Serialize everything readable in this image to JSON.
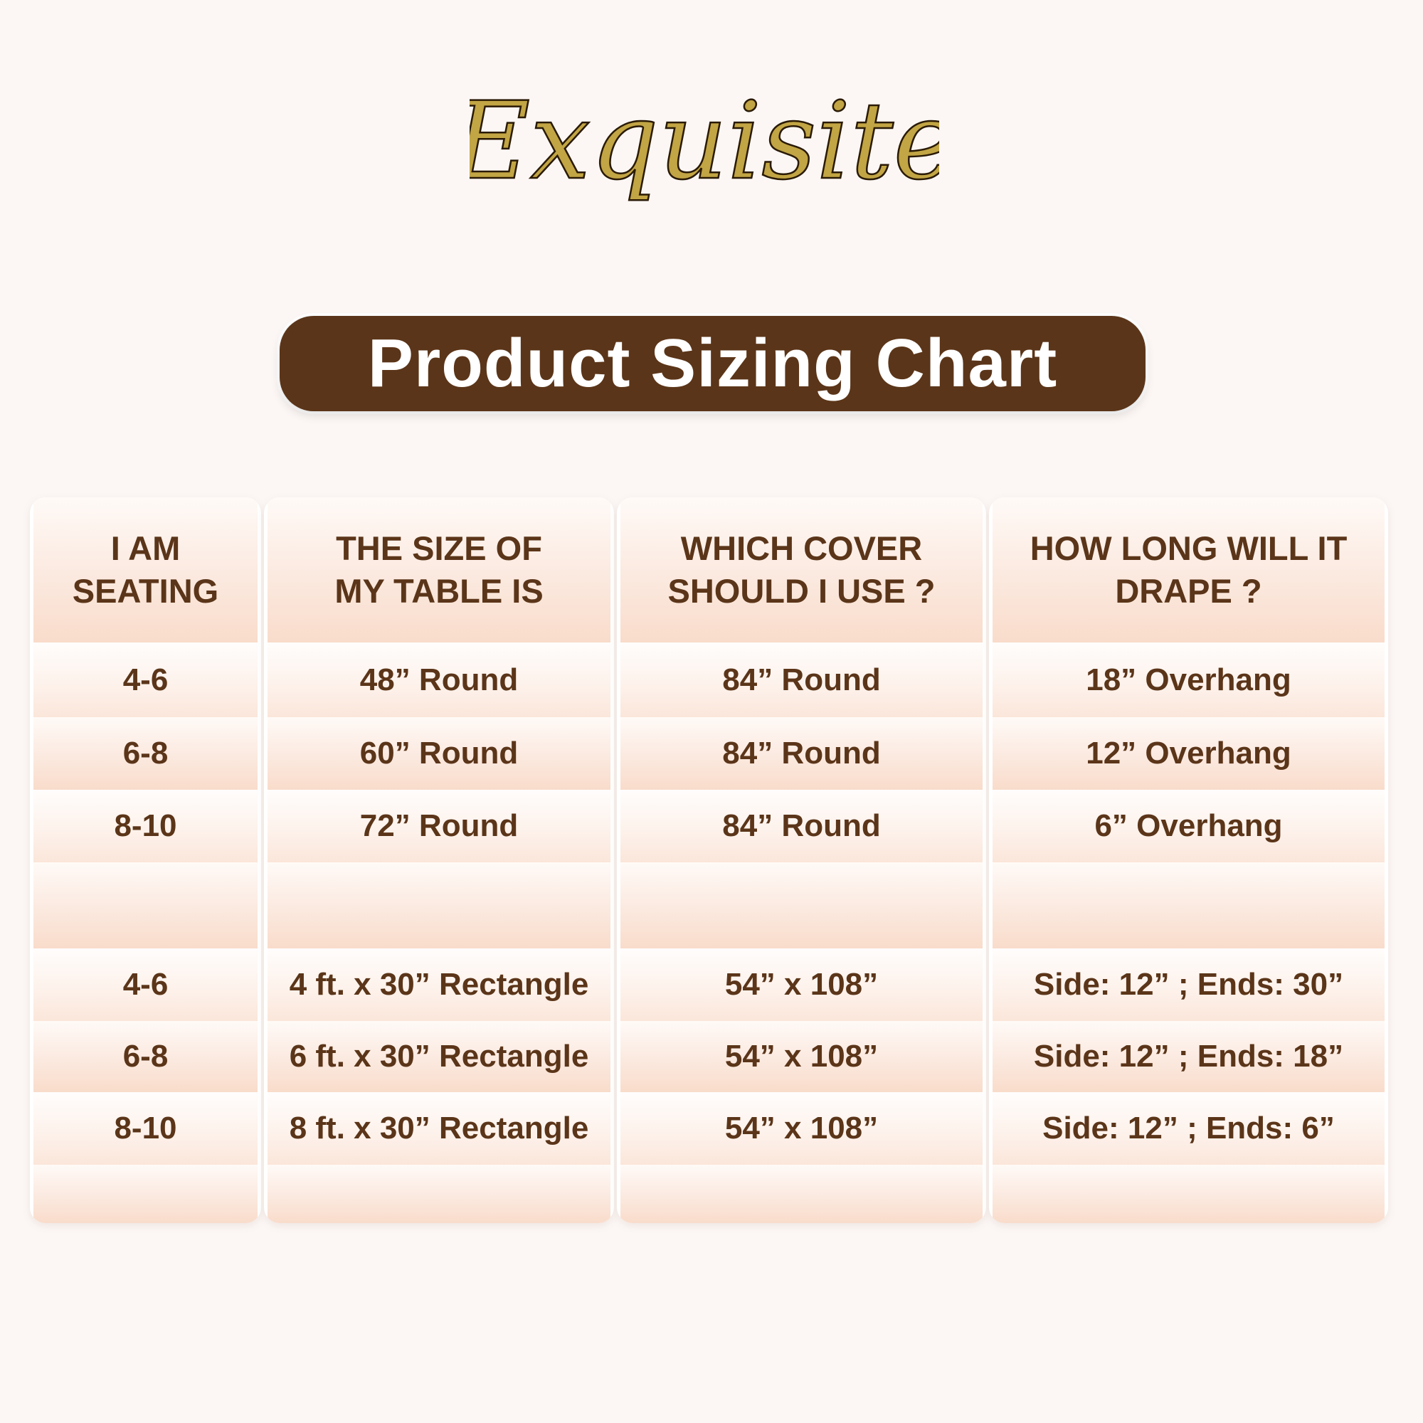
{
  "brand": {
    "logo_text": "Exquisite",
    "logo_color": "#c2a544"
  },
  "banner": {
    "title": "Product Sizing Chart",
    "background": "#5b3519"
  },
  "table": {
    "headers": [
      "I AM SEATING",
      "THE SIZE OF MY TABLE IS",
      "WHICH COVER SHOULD I USE ?",
      "HOW LONG WILL IT DRAPE ?"
    ],
    "round_rows": [
      [
        "4-6",
        "48” Round",
        "84” Round",
        "18” Overhang"
      ],
      [
        "6-8",
        "60” Round",
        "84” Round",
        "12” Overhang"
      ],
      [
        "8-10",
        "72” Round",
        "84” Round",
        "6” Overhang"
      ]
    ],
    "rect_rows": [
      [
        "4-6",
        "4 ft. x 30” Rectangle",
        "54” x 108”",
        "Side: 12” ; Ends: 30”"
      ],
      [
        "6-8",
        "6 ft. x 30” Rectangle",
        "54” x 108”",
        "Side: 12” ; Ends: 18”"
      ],
      [
        "8-10",
        "8 ft. x 30” Rectangle",
        "54” x 108”",
        "Side: 12” ; Ends: 6”"
      ]
    ],
    "text_color": "#5b3519"
  }
}
